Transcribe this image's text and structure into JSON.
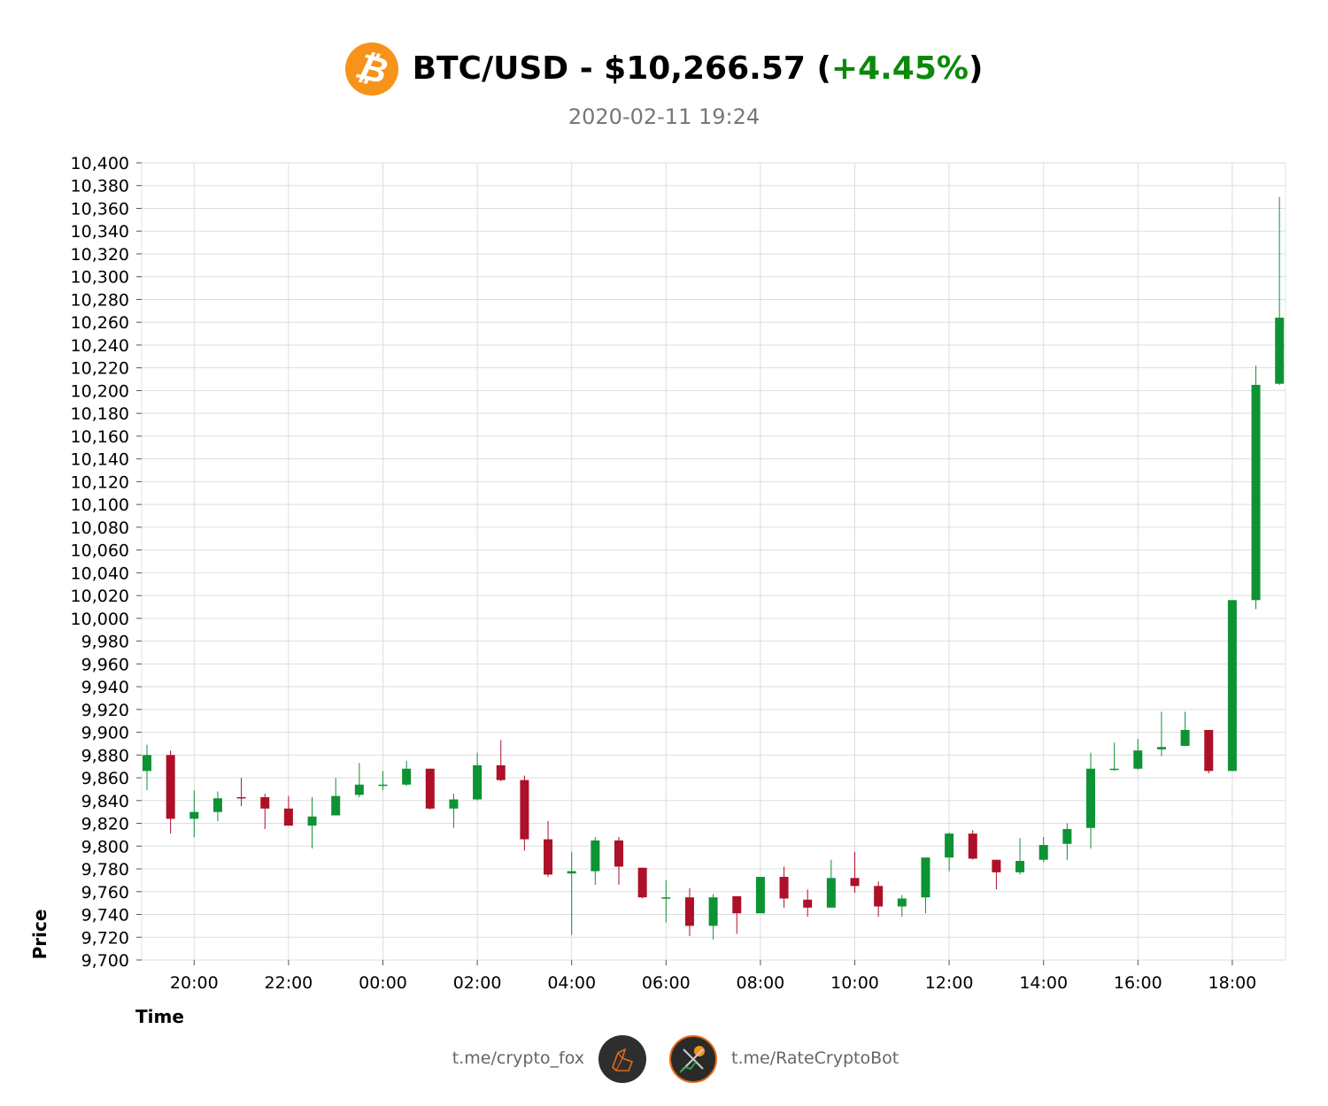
{
  "header": {
    "title_prefix": "BTC/USD - $10,266.57 (",
    "change": "+4.45%",
    "title_suffix": ")",
    "timestamp": "2020-02-11 19:24",
    "coin_icon": "bitcoin-icon",
    "coin_symbol": "₿"
  },
  "colors": {
    "up": "#0d9333",
    "down": "#ad1028",
    "change_text": "#0a8a0a",
    "coin": "#f7931a",
    "grid": "#dddddd"
  },
  "chart_data": {
    "type": "candlestick",
    "xlabel": "Time",
    "ylabel": "Price",
    "ylim": [
      9700,
      10400
    ],
    "y_ticks": [
      "9,700",
      "9,720",
      "9,740",
      "9,760",
      "9,780",
      "9,800",
      "9,820",
      "9,840",
      "9,860",
      "9,880",
      "9,900",
      "9,920",
      "9,940",
      "9,960",
      "9,980",
      "10,000",
      "10,020",
      "10,040",
      "10,060",
      "10,080",
      "10,100",
      "10,120",
      "10,140",
      "10,160",
      "10,180",
      "10,200",
      "10,220",
      "10,240",
      "10,260",
      "10,280",
      "10,300",
      "10,320",
      "10,340",
      "10,360",
      "10,380",
      "10,400"
    ],
    "x_ticks": [
      "20:00",
      "22:00",
      "00:00",
      "02:00",
      "04:00",
      "06:00",
      "08:00",
      "10:00",
      "12:00",
      "14:00",
      "16:00",
      "18:00"
    ],
    "grid": true,
    "candles": [
      {
        "t": "19:00",
        "o": 9866,
        "h": 9889,
        "l": 9849,
        "c": 9880
      },
      {
        "t": "19:30",
        "o": 9880,
        "h": 9884,
        "l": 9811,
        "c": 9824
      },
      {
        "t": "20:00",
        "o": 9824,
        "h": 9849,
        "l": 9808,
        "c": 9830
      },
      {
        "t": "20:30",
        "o": 9830,
        "h": 9848,
        "l": 9822,
        "c": 9842
      },
      {
        "t": "21:00",
        "o": 9843,
        "h": 9860,
        "l": 9835,
        "c": 9842
      },
      {
        "t": "21:30",
        "o": 9843,
        "h": 9846,
        "l": 9815,
        "c": 9833
      },
      {
        "t": "22:00",
        "o": 9833,
        "h": 9844,
        "l": 9818,
        "c": 9818
      },
      {
        "t": "22:30",
        "o": 9818,
        "h": 9843,
        "l": 9798,
        "c": 9826
      },
      {
        "t": "23:00",
        "o": 9827,
        "h": 9860,
        "l": 9827,
        "c": 9844
      },
      {
        "t": "23:30",
        "o": 9845,
        "h": 9873,
        "l": 9843,
        "c": 9854
      },
      {
        "t": "00:00",
        "o": 9854,
        "h": 9866,
        "l": 9849,
        "c": 9854
      },
      {
        "t": "00:30",
        "o": 9854,
        "h": 9875,
        "l": 9853,
        "c": 9868
      },
      {
        "t": "01:00",
        "o": 9868,
        "h": 9868,
        "l": 9832,
        "c": 9833
      },
      {
        "t": "01:30",
        "o": 9833,
        "h": 9846,
        "l": 9816,
        "c": 9841
      },
      {
        "t": "02:00",
        "o": 9841,
        "h": 9882,
        "l": 9840,
        "c": 9871
      },
      {
        "t": "02:30",
        "o": 9871,
        "h": 9893,
        "l": 9857,
        "c": 9858
      },
      {
        "t": "03:00",
        "o": 9858,
        "h": 9862,
        "l": 9796,
        "c": 9806
      },
      {
        "t": "03:30",
        "o": 9806,
        "h": 9822,
        "l": 9773,
        "c": 9775
      },
      {
        "t": "04:00",
        "o": 9776,
        "h": 9795,
        "l": 9722,
        "c": 9778
      },
      {
        "t": "04:30",
        "o": 9778,
        "h": 9808,
        "l": 9766,
        "c": 9805
      },
      {
        "t": "05:00",
        "o": 9805,
        "h": 9808,
        "l": 9766,
        "c": 9782
      },
      {
        "t": "05:30",
        "o": 9781,
        "h": 9781,
        "l": 9754,
        "c": 9755
      },
      {
        "t": "06:00",
        "o": 9755,
        "h": 9770,
        "l": 9733,
        "c": 9755
      },
      {
        "t": "06:30",
        "o": 9755,
        "h": 9763,
        "l": 9721,
        "c": 9730
      },
      {
        "t": "07:00",
        "o": 9730,
        "h": 9758,
        "l": 9718,
        "c": 9755
      },
      {
        "t": "07:30",
        "o": 9756,
        "h": 9756,
        "l": 9723,
        "c": 9741
      },
      {
        "t": "08:00",
        "o": 9741,
        "h": 9773,
        "l": 9741,
        "c": 9773
      },
      {
        "t": "08:30",
        "o": 9773,
        "h": 9782,
        "l": 9746,
        "c": 9754
      },
      {
        "t": "09:00",
        "o": 9753,
        "h": 9762,
        "l": 9738,
        "c": 9746
      },
      {
        "t": "09:30",
        "o": 9746,
        "h": 9788,
        "l": 9746,
        "c": 9772
      },
      {
        "t": "10:00",
        "o": 9772,
        "h": 9795,
        "l": 9759,
        "c": 9765
      },
      {
        "t": "10:30",
        "o": 9765,
        "h": 9769,
        "l": 9738,
        "c": 9747
      },
      {
        "t": "11:00",
        "o": 9747,
        "h": 9757,
        "l": 9738,
        "c": 9754
      },
      {
        "t": "11:30",
        "o": 9755,
        "h": 9790,
        "l": 9741,
        "c": 9790
      },
      {
        "t": "12:00",
        "o": 9790,
        "h": 9812,
        "l": 9778,
        "c": 9811
      },
      {
        "t": "12:30",
        "o": 9811,
        "h": 9814,
        "l": 9788,
        "c": 9789
      },
      {
        "t": "13:00",
        "o": 9788,
        "h": 9788,
        "l": 9762,
        "c": 9777
      },
      {
        "t": "13:30",
        "o": 9777,
        "h": 9807,
        "l": 9775,
        "c": 9787
      },
      {
        "t": "14:00",
        "o": 9788,
        "h": 9808,
        "l": 9786,
        "c": 9801
      },
      {
        "t": "14:30",
        "o": 9802,
        "h": 9820,
        "l": 9788,
        "c": 9815
      },
      {
        "t": "15:00",
        "o": 9816,
        "h": 9882,
        "l": 9798,
        "c": 9868
      },
      {
        "t": "15:30",
        "o": 9868,
        "h": 9891,
        "l": 9866,
        "c": 9868
      },
      {
        "t": "16:00",
        "o": 9868,
        "h": 9894,
        "l": 9867,
        "c": 9884
      },
      {
        "t": "16:30",
        "o": 9885,
        "h": 9918,
        "l": 9879,
        "c": 9887
      },
      {
        "t": "17:00",
        "o": 9888,
        "h": 9918,
        "l": 9888,
        "c": 9902
      },
      {
        "t": "17:30",
        "o": 9902,
        "h": 9902,
        "l": 9864,
        "c": 9866
      },
      {
        "t": "18:00",
        "o": 9866,
        "h": 10016,
        "l": 9866,
        "c": 10016
      },
      {
        "t": "18:30",
        "o": 10016,
        "h": 10222,
        "l": 10008,
        "c": 10205
      },
      {
        "t": "19:00",
        "o": 10206,
        "h": 10370,
        "l": 10205,
        "c": 10264
      }
    ]
  },
  "footer": {
    "left_link": "t.me/crypto_fox",
    "right_link": "t.me/RateCryptoBot",
    "left_avatar": "fox-logo-icon",
    "right_avatar": "rate-crypto-bot-logo-icon"
  }
}
